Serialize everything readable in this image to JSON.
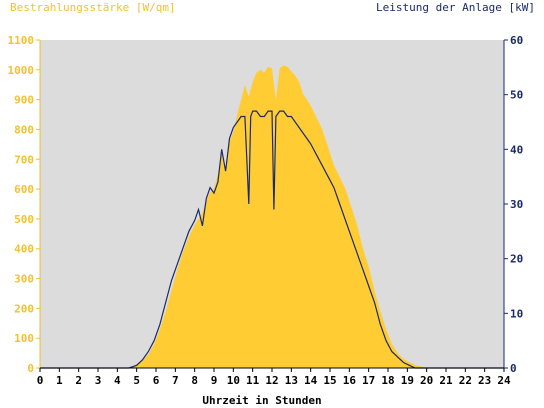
{
  "chart_data": {
    "type": "area",
    "title_left": "Bestrahlungsstärke [W/qm]",
    "title_right": "Leistung der Anlage [kW]",
    "xlabel": "Uhrzeit in Stunden",
    "xlim": [
      0,
      24
    ],
    "y_left_lim": [
      0,
      1100
    ],
    "y_right_lim": [
      0,
      60
    ],
    "x_ticks": [
      "0",
      "1",
      "2",
      "3",
      "4",
      "5",
      "6",
      "7",
      "8",
      "9",
      "10",
      "11",
      "12",
      "13",
      "14",
      "15",
      "16",
      "17",
      "18",
      "19",
      "20",
      "21",
      "22",
      "23",
      "24"
    ],
    "y_left_ticks": [
      "0",
      "100",
      "200",
      "300",
      "400",
      "500",
      "600",
      "700",
      "800",
      "900",
      "1000",
      "1100"
    ],
    "y_right_ticks": [
      "0",
      "10",
      "20",
      "30",
      "40",
      "50",
      "60"
    ],
    "grid": false,
    "colors": {
      "irradiance": "#ffcc33",
      "power": "#1a2a6c",
      "plot_bg": "#dcdcdc",
      "left_axis": "#f5c12e",
      "right_axis": "#1a2a6c"
    },
    "series": [
      {
        "name": "Bestrahlungsstärke",
        "axis": "left",
        "style": "area",
        "x": [
          0,
          4.5,
          4.8,
          5.0,
          5.3,
          5.6,
          5.9,
          6.2,
          6.5,
          6.8,
          7.1,
          7.4,
          7.7,
          8.0,
          8.2,
          8.4,
          8.6,
          8.8,
          9.0,
          9.2,
          9.4,
          9.6,
          9.8,
          10.0,
          10.2,
          10.4,
          10.6,
          10.8,
          11.0,
          11.2,
          11.4,
          11.6,
          11.8,
          12.0,
          12.2,
          12.4,
          12.6,
          12.8,
          13.0,
          13.2,
          13.4,
          13.6,
          13.8,
          14.0,
          14.3,
          14.6,
          14.9,
          15.2,
          15.5,
          15.8,
          16.1,
          16.4,
          16.7,
          17.0,
          17.3,
          17.6,
          17.9,
          18.2,
          18.5,
          18.8,
          19.1,
          19.4,
          19.7,
          20.0,
          20.3,
          20.6,
          24
        ],
        "values": [
          0,
          0,
          5,
          15,
          25,
          45,
          80,
          130,
          190,
          260,
          330,
          390,
          440,
          480,
          500,
          520,
          560,
          590,
          600,
          650,
          720,
          660,
          760,
          790,
          850,
          900,
          950,
          910,
          960,
          990,
          1000,
          990,
          1010,
          1005,
          900,
          1005,
          1015,
          1010,
          995,
          980,
          960,
          920,
          900,
          880,
          840,
          800,
          740,
          680,
          640,
          600,
          540,
          480,
          400,
          340,
          260,
          190,
          130,
          80,
          50,
          30,
          20,
          10,
          5,
          0,
          0,
          0,
          0
        ]
      },
      {
        "name": "Leistung der Anlage",
        "axis": "right",
        "style": "line",
        "x": [
          0,
          4.6,
          5.0,
          5.3,
          5.6,
          5.9,
          6.2,
          6.5,
          6.8,
          7.1,
          7.4,
          7.7,
          8.0,
          8.2,
          8.4,
          8.6,
          8.8,
          9.0,
          9.2,
          9.4,
          9.6,
          9.8,
          10.0,
          10.2,
          10.4,
          10.6,
          10.8,
          10.9,
          11.0,
          11.2,
          11.4,
          11.6,
          11.8,
          12.0,
          12.1,
          12.2,
          12.4,
          12.6,
          12.8,
          13.0,
          13.2,
          13.4,
          13.6,
          13.8,
          14.0,
          14.3,
          14.6,
          14.9,
          15.2,
          15.5,
          15.8,
          16.1,
          16.4,
          16.7,
          17.0,
          17.3,
          17.6,
          17.9,
          18.2,
          18.5,
          18.8,
          19.1,
          19.4,
          19.7,
          20.0,
          20.3,
          24
        ],
        "values": [
          0,
          0,
          0.5,
          1.5,
          3,
          5,
          8,
          12,
          16,
          19,
          22,
          25,
          27,
          29,
          26,
          31,
          33,
          32,
          34,
          40,
          36,
          42,
          44,
          45,
          46,
          46,
          30,
          46,
          47,
          47,
          46,
          46,
          47,
          47,
          29,
          46,
          47,
          47,
          46,
          46,
          45,
          44,
          43,
          42,
          41,
          39,
          37,
          35,
          33,
          30,
          27,
          24,
          21,
          18,
          15,
          12,
          8,
          5,
          3,
          2,
          1,
          0.5,
          0,
          0,
          0,
          0,
          0
        ]
      }
    ]
  }
}
